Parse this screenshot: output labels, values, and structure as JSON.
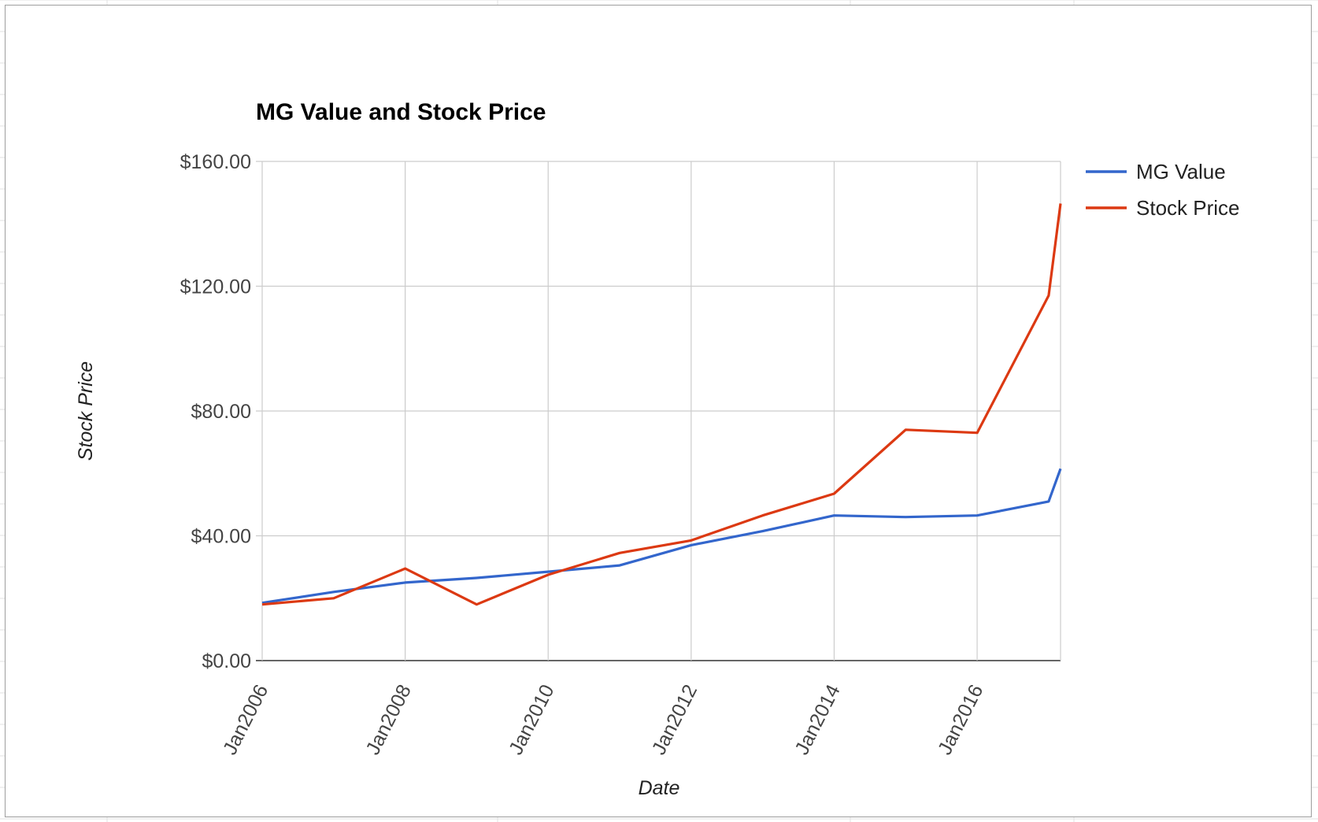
{
  "chart_data": {
    "type": "line",
    "title": "MG Value and Stock Price",
    "xlabel": "Date",
    "ylabel": "Stock Price",
    "x_tick_labels": [
      "Jan2006",
      "Jan2008",
      "Jan2010",
      "Jan2012",
      "Jan2014",
      "Jan2016"
    ],
    "y_tick_labels": [
      "$0.00",
      "$40.00",
      "$80.00",
      "$120.00",
      "$160.00"
    ],
    "ylim": [
      0,
      160
    ],
    "xlim": [
      "2006-01",
      "2017-03"
    ],
    "grid": true,
    "legend_position": "right",
    "x": [
      "2006-01",
      "2007-01",
      "2008-01",
      "2009-01",
      "2010-01",
      "2011-01",
      "2012-01",
      "2013-01",
      "2014-01",
      "2015-01",
      "2016-01",
      "2017-01",
      "2017-03"
    ],
    "series": [
      {
        "name": "MG Value",
        "color": "#3366cc",
        "values": [
          18.5,
          22,
          25,
          26.5,
          28.5,
          30.5,
          37,
          41.5,
          46.5,
          46,
          46.5,
          51,
          61.5
        ]
      },
      {
        "name": "Stock Price",
        "color": "#dc3912",
        "values": [
          18,
          20,
          29.5,
          18,
          27.5,
          34.5,
          38.5,
          46.5,
          53.5,
          74,
          73,
          117,
          146.5
        ]
      }
    ]
  }
}
